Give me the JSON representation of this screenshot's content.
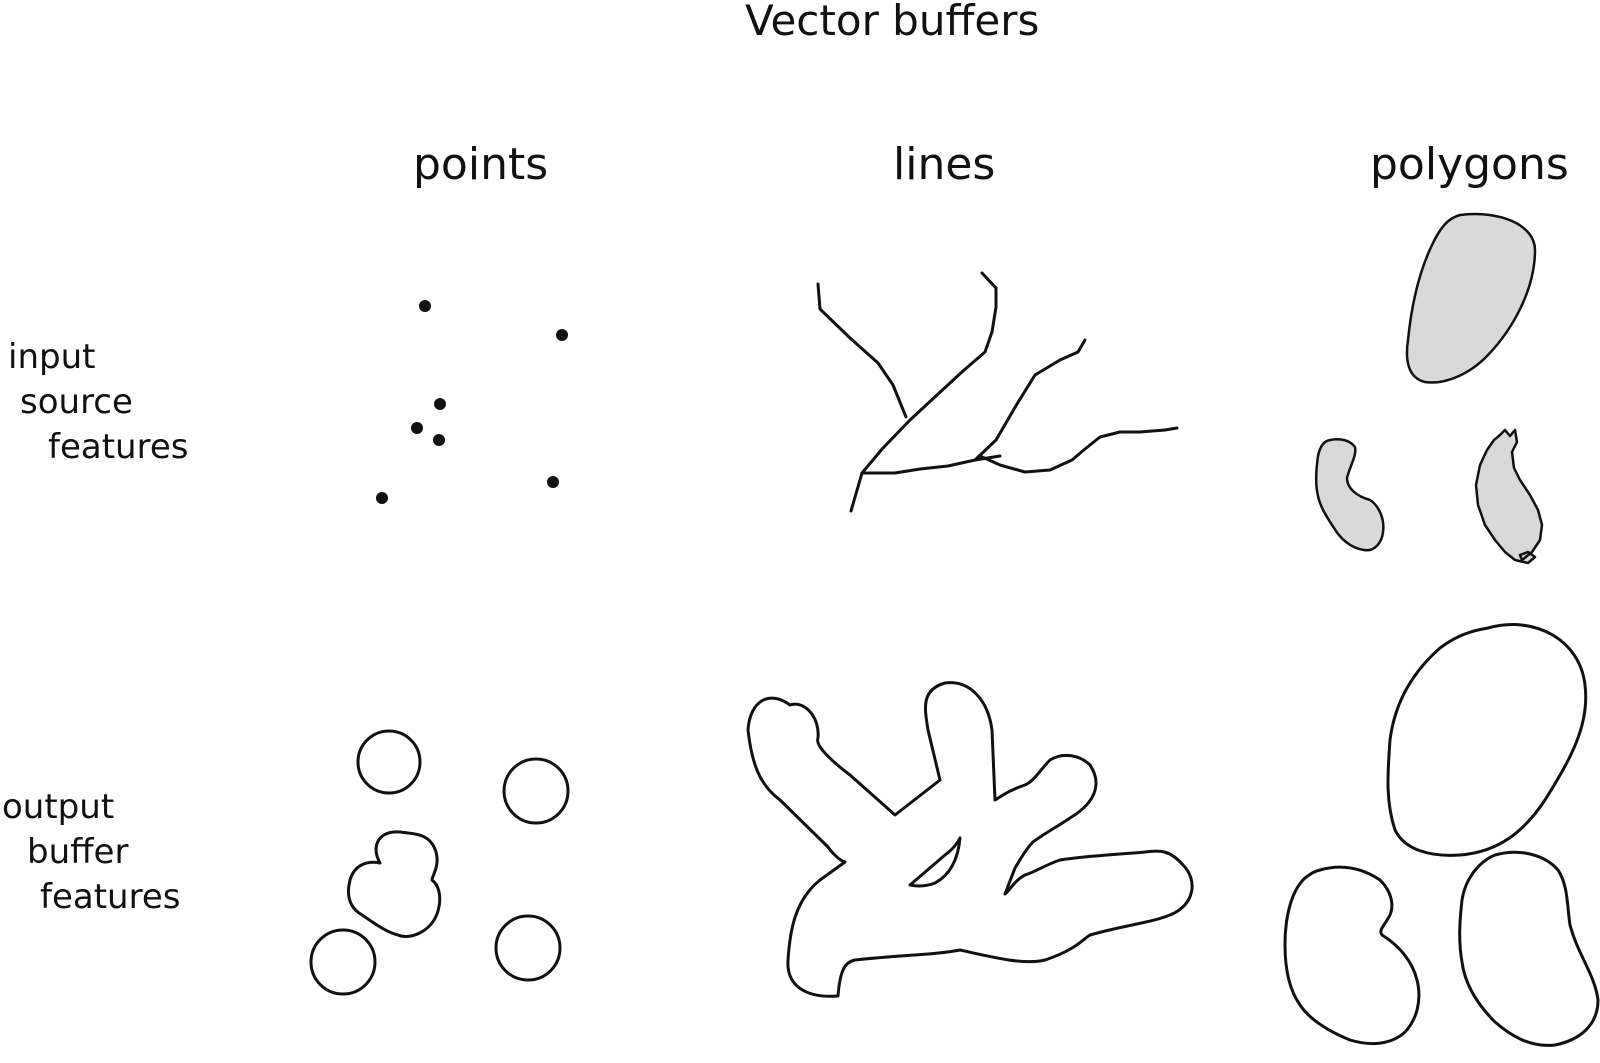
{
  "title": "Vector buffers",
  "columns": {
    "points": "points",
    "lines": "lines",
    "polygons": "polygons"
  },
  "rows": {
    "input": [
      "input",
      "source",
      "features"
    ],
    "output": [
      "output",
      "buffer",
      "features"
    ]
  },
  "colors": {
    "ink": "#111111",
    "polygon_fill": "#d9d9d9",
    "background": "#ffffff"
  }
}
